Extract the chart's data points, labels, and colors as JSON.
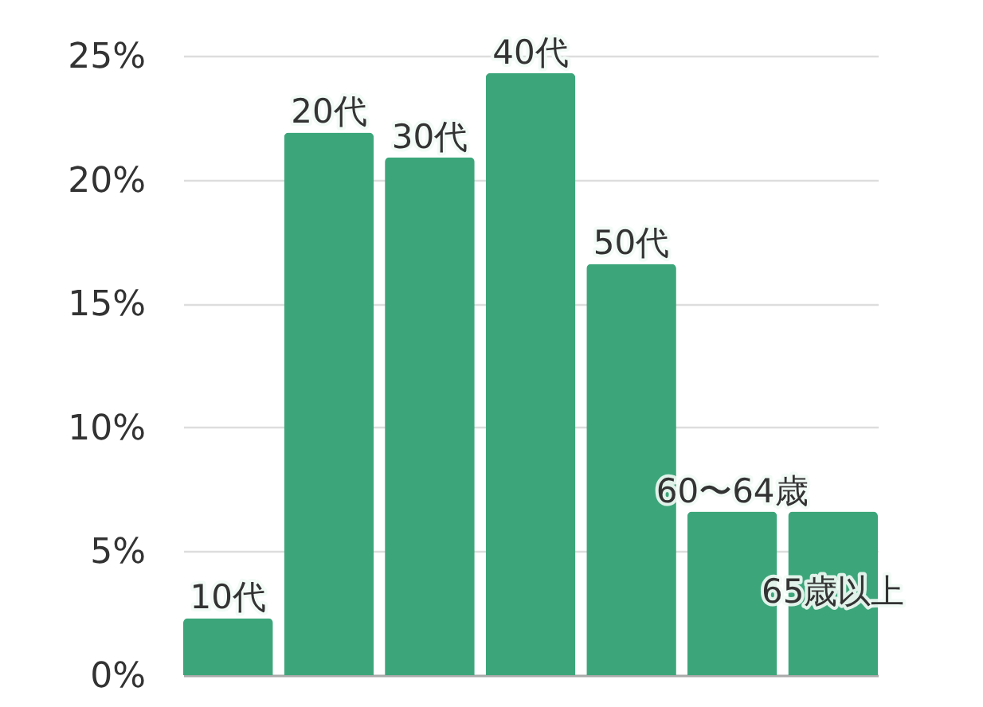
{
  "chart_data": {
    "type": "bar",
    "categories": [
      "10代",
      "20代",
      "30代",
      "40代",
      "50代",
      "60〜64歳",
      "65歳以上"
    ],
    "values": [
      2.3,
      21.9,
      20.9,
      24.3,
      16.6,
      6.6,
      6.6
    ],
    "color": "#3ca67a",
    "ylim": [
      0,
      25
    ],
    "yticks": [
      {
        "value": 0,
        "label": "0%"
      },
      {
        "value": 5,
        "label": "5%"
      },
      {
        "value": 10,
        "label": "10%"
      },
      {
        "value": 15,
        "label": "15%"
      },
      {
        "value": 20,
        "label": "20%"
      },
      {
        "value": 25,
        "label": "25%"
      }
    ],
    "grid": "y"
  }
}
